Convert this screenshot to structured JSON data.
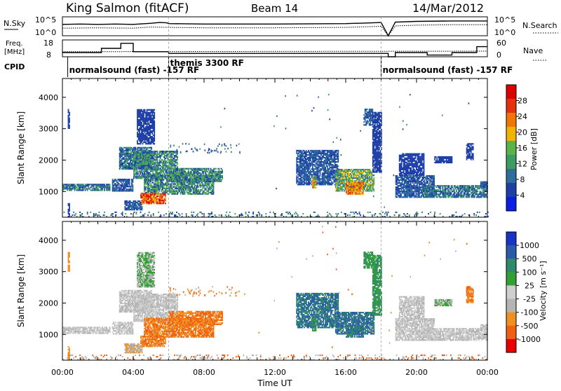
{
  "header": {
    "station": "King Salmon (fitACF)",
    "beam": "Beam 14",
    "date": "14/Mar/2012"
  },
  "colors": {
    "power": [
      "#0a1ee6",
      "#1f3fa8",
      "#2f6e9b",
      "#3c9c62",
      "#5ab24a",
      "#f0b400",
      "#f07800",
      "#e63010",
      "#dc0000"
    ],
    "velocity": [
      "#e80000",
      "#f06010",
      "#f09020",
      "#b4b4b4",
      "#cfcfcf",
      "#33a033",
      "#2f8a6a",
      "#2a5aa8",
      "#1834c8"
    ]
  },
  "chart_data": [
    {
      "name_id": "noise-panel",
      "type": "line",
      "left_label": "N.Sky",
      "right_label": "N.Search",
      "left_ticks": [
        "10^5",
        "10^0"
      ],
      "right_ticks": [
        "10^5",
        "10^0"
      ],
      "series": [
        {
          "name": "N.Sky",
          "style": "solid",
          "x": [
            0,
            1,
            2,
            3,
            4,
            5,
            5.5,
            5.9,
            6,
            8,
            12,
            16,
            17.5,
            18,
            18.4,
            18.8,
            20,
            22,
            24
          ],
          "y": [
            3.0,
            3.1,
            3.0,
            3.1,
            3.0,
            3.3,
            3.5,
            3.4,
            3.2,
            3.1,
            3.1,
            3.2,
            3.4,
            3.5,
            0.0,
            3.6,
            3.8,
            3.9,
            3.9
          ]
        },
        {
          "name": "N.Search",
          "style": "dotted",
          "x": [
            0,
            2,
            4,
            5,
            6,
            8,
            12,
            16,
            18,
            18.4,
            18.8,
            20,
            22,
            24
          ],
          "y": [
            2.0,
            2.1,
            2.0,
            2.3,
            2.2,
            2.1,
            2.1,
            2.2,
            2.5,
            0.0,
            2.6,
            2.8,
            2.9,
            2.9
          ]
        }
      ]
    },
    {
      "name_id": "freq-panel",
      "type": "line",
      "left_label": "Freq.",
      "left_unit": "[MHz]",
      "right_label": "Nave",
      "left_ticks": [
        "18",
        "8"
      ],
      "right_ticks": [
        "60",
        "0"
      ],
      "series": [
        {
          "name": "Freq.",
          "style": "solid",
          "x": [
            0,
            2.2,
            2.2,
            3.3,
            3.3,
            4.0,
            4.0,
            6.0,
            6.0,
            18.4,
            18.4,
            18.8,
            18.8,
            20.6,
            20.6,
            22.0,
            22.0,
            23.4,
            23.4,
            24
          ],
          "y": [
            10.5,
            10.5,
            13,
            13,
            16,
            16,
            11,
            11,
            10,
            10,
            8,
            8,
            10.5,
            10.5,
            9,
            9,
            10.5,
            10.5,
            14,
            14
          ]
        },
        {
          "name": "Nave",
          "style": "dotted",
          "x": [
            0,
            24
          ],
          "y": [
            18,
            20
          ]
        }
      ]
    },
    {
      "name_id": "cpid-bar",
      "type": "table",
      "label": "CPID",
      "segments": [
        {
          "start": 0.3,
          "end": 6.0,
          "text": "normalsound (fast) -157 RF"
        },
        {
          "start": 6.0,
          "end": 18.0,
          "text": "themis 3300 RF"
        },
        {
          "start": 18.0,
          "end": 24.0,
          "text": "normalsound (fast) -157 RF"
        }
      ]
    },
    {
      "name_id": "power-panel",
      "type": "heatmap",
      "parameter": "power",
      "ylabel": "Slant Range [km]",
      "ylim": [
        180,
        4600
      ],
      "yticks": [
        1000,
        2000,
        3000,
        4000
      ],
      "colorbar_label": "Power [dB]",
      "colorbar_ticks": [
        "28",
        "24",
        "20",
        "16",
        "12",
        "8",
        "4"
      ],
      "scatter_bins": [
        [
          8.0,
          2400,
          300,
          0.9
        ],
        [
          10.0,
          2500,
          3000,
          0.03
        ],
        [
          12.0,
          2500,
          3000,
          0.03
        ],
        [
          14.0,
          3800,
          2000,
          0.2
        ],
        [
          17.2,
          1600,
          3000,
          0.18
        ],
        [
          21.0,
          3500,
          1500,
          0.12
        ]
      ],
      "regions": [
        {
          "t0": 0.0,
          "t1": 2.7,
          "r0": 1020,
          "r1": 1230,
          "c": [
            1,
            2,
            3
          ]
        },
        {
          "t0": 0.3,
          "t1": 0.4,
          "r0": 3000,
          "r1": 3600,
          "c": [
            1
          ]
        },
        {
          "t0": 0.3,
          "t1": 0.4,
          "r0": 180,
          "r1": 600,
          "c": [
            1
          ]
        },
        {
          "t0": 2.8,
          "t1": 4.0,
          "r0": 1000,
          "r1": 1400,
          "c": [
            1,
            2
          ]
        },
        {
          "t0": 3.2,
          "t1": 5.0,
          "r0": 1700,
          "r1": 2400,
          "c": [
            1,
            2,
            3
          ]
        },
        {
          "t0": 3.5,
          "t1": 4.5,
          "r0": 400,
          "r1": 700,
          "c": [
            1,
            2
          ]
        },
        {
          "t0": 4.0,
          "t1": 6.5,
          "r0": 1400,
          "r1": 2300,
          "c": [
            1,
            2,
            3,
            4
          ]
        },
        {
          "t0": 4.6,
          "t1": 8.5,
          "r0": 900,
          "r1": 1500,
          "c": [
            1,
            2,
            3,
            4
          ]
        },
        {
          "t0": 6.0,
          "t1": 9.0,
          "r0": 1300,
          "r1": 1750,
          "c": [
            1,
            2,
            3,
            4
          ]
        },
        {
          "t0": 4.4,
          "t1": 5.8,
          "r0": 600,
          "r1": 950,
          "c": [
            5,
            6,
            7,
            8
          ]
        },
        {
          "t0": 4.2,
          "t1": 5.2,
          "r0": 2500,
          "r1": 3600,
          "c": [
            1
          ]
        },
        {
          "t0": 13.2,
          "t1": 15.6,
          "r0": 1200,
          "r1": 2300,
          "c": [
            1,
            2
          ]
        },
        {
          "t0": 14.1,
          "t1": 14.3,
          "r0": 1100,
          "r1": 1500,
          "c": [
            4,
            5,
            6
          ]
        },
        {
          "t0": 15.4,
          "t1": 17.6,
          "r0": 1000,
          "r1": 1700,
          "c": [
            2,
            3,
            4,
            5
          ]
        },
        {
          "t0": 16.0,
          "t1": 17.0,
          "r0": 900,
          "r1": 1300,
          "c": [
            5,
            6,
            7
          ]
        },
        {
          "t0": 17.0,
          "t1": 17.5,
          "r0": 3100,
          "r1": 3600,
          "c": [
            1,
            2
          ]
        },
        {
          "t0": 17.5,
          "t1": 18.0,
          "r0": 1600,
          "r1": 3500,
          "c": [
            1
          ]
        },
        {
          "t0": 18.8,
          "t1": 21.0,
          "r0": 800,
          "r1": 1500,
          "c": [
            1,
            2
          ]
        },
        {
          "t0": 19.0,
          "t1": 20.4,
          "r0": 1500,
          "r1": 2200,
          "c": [
            1
          ]
        },
        {
          "t0": 20.3,
          "t1": 24.0,
          "r0": 800,
          "r1": 1200,
          "c": [
            1,
            2,
            3
          ]
        },
        {
          "t0": 21.0,
          "t1": 22.0,
          "r0": 1900,
          "r1": 2100,
          "c": [
            1
          ]
        },
        {
          "t0": 22.8,
          "t1": 23.2,
          "r0": 2000,
          "r1": 2500,
          "c": [
            1
          ]
        },
        {
          "t0": 23.6,
          "t1": 24.0,
          "r0": 1100,
          "r1": 1300,
          "c": [
            1,
            2
          ]
        },
        {
          "t0": 0.0,
          "t1": 24.0,
          "r0": 180,
          "r1": 350,
          "c": [
            1,
            2,
            3
          ]
        }
      ]
    },
    {
      "name_id": "velocity-panel",
      "type": "heatmap",
      "parameter": "velocity",
      "ylabel": "Slant Range [km]",
      "ylim": [
        180,
        4600
      ],
      "yticks": [
        1000,
        2000,
        3000,
        4000
      ],
      "colorbar_label": "Velocity [m s⁻¹]",
      "colorbar_ticks": [
        "1000",
        "500",
        "100",
        "25",
        "-25",
        "-100",
        "-500",
        "-1000"
      ],
      "scatter_bins": [
        [
          8.0,
          2400,
          300,
          0.9
        ],
        [
          10.0,
          2500,
          3000,
          0.03
        ],
        [
          12.0,
          2500,
          3000,
          0.03
        ],
        [
          14.0,
          3800,
          2000,
          0.2
        ],
        [
          17.2,
          1600,
          3000,
          0.18
        ],
        [
          21.0,
          3500,
          1500,
          0.12
        ]
      ],
      "regions": [
        {
          "t0": 0.0,
          "t1": 2.7,
          "r0": 1020,
          "r1": 1230,
          "c": [
            3,
            4
          ]
        },
        {
          "t0": 0.3,
          "t1": 0.4,
          "r0": 3000,
          "r1": 3600,
          "c": [
            2
          ]
        },
        {
          "t0": 0.3,
          "t1": 0.4,
          "r0": 180,
          "r1": 600,
          "c": [
            2
          ]
        },
        {
          "t0": 2.8,
          "t1": 4.0,
          "r0": 1000,
          "r1": 1400,
          "c": [
            3,
            4
          ]
        },
        {
          "t0": 3.2,
          "t1": 5.0,
          "r0": 1700,
          "r1": 2400,
          "c": [
            3,
            4
          ]
        },
        {
          "t0": 3.5,
          "t1": 4.5,
          "r0": 400,
          "r1": 700,
          "c": [
            2,
            3
          ]
        },
        {
          "t0": 4.0,
          "t1": 6.5,
          "r0": 1400,
          "r1": 2300,
          "c": [
            3,
            4
          ]
        },
        {
          "t0": 4.6,
          "t1": 8.5,
          "r0": 900,
          "r1": 1500,
          "c": [
            1,
            2
          ]
        },
        {
          "t0": 6.0,
          "t1": 9.0,
          "r0": 1300,
          "r1": 1750,
          "c": [
            1,
            2
          ]
        },
        {
          "t0": 4.4,
          "t1": 5.8,
          "r0": 600,
          "r1": 950,
          "c": [
            1,
            2
          ]
        },
        {
          "t0": 4.2,
          "t1": 5.2,
          "r0": 2500,
          "r1": 3600,
          "c": [
            3,
            5
          ]
        },
        {
          "t0": 13.2,
          "t1": 15.6,
          "r0": 1200,
          "r1": 2300,
          "c": [
            6,
            7
          ]
        },
        {
          "t0": 14.1,
          "t1": 14.3,
          "r0": 1100,
          "r1": 1500,
          "c": [
            5,
            6
          ]
        },
        {
          "t0": 15.4,
          "t1": 17.6,
          "r0": 1000,
          "r1": 1700,
          "c": [
            6,
            7
          ]
        },
        {
          "t0": 16.0,
          "t1": 17.0,
          "r0": 900,
          "r1": 1300,
          "c": [
            6,
            7
          ]
        },
        {
          "t0": 17.0,
          "t1": 17.5,
          "r0": 3100,
          "r1": 3600,
          "c": [
            5,
            6
          ]
        },
        {
          "t0": 17.5,
          "t1": 18.0,
          "r0": 1600,
          "r1": 3500,
          "c": [
            5,
            6
          ]
        },
        {
          "t0": 18.8,
          "t1": 21.0,
          "r0": 800,
          "r1": 1500,
          "c": [
            3,
            4
          ]
        },
        {
          "t0": 19.0,
          "t1": 20.4,
          "r0": 1500,
          "r1": 2200,
          "c": [
            3,
            4
          ]
        },
        {
          "t0": 20.3,
          "t1": 24.0,
          "r0": 800,
          "r1": 1200,
          "c": [
            3,
            4
          ]
        },
        {
          "t0": 21.0,
          "t1": 22.0,
          "r0": 1900,
          "r1": 2100,
          "c": [
            3,
            5
          ]
        },
        {
          "t0": 22.8,
          "t1": 23.2,
          "r0": 2000,
          "r1": 2500,
          "c": [
            1,
            2
          ]
        },
        {
          "t0": 23.6,
          "t1": 24.0,
          "r0": 1100,
          "r1": 1300,
          "c": [
            3,
            4
          ]
        },
        {
          "t0": 0.0,
          "t1": 24.0,
          "r0": 180,
          "r1": 350,
          "c": [
            1,
            3
          ]
        }
      ]
    }
  ],
  "x_axis": {
    "label": "Time UT",
    "xlim": [
      0,
      24
    ],
    "ticks": [
      0,
      4,
      8,
      12,
      16,
      20,
      24
    ],
    "tick_labels": [
      "00:00",
      "04:00",
      "08:00",
      "12:00",
      "16:00",
      "20:00",
      "00:00"
    ],
    "dashed_marks": [
      6.0,
      18.0
    ]
  }
}
